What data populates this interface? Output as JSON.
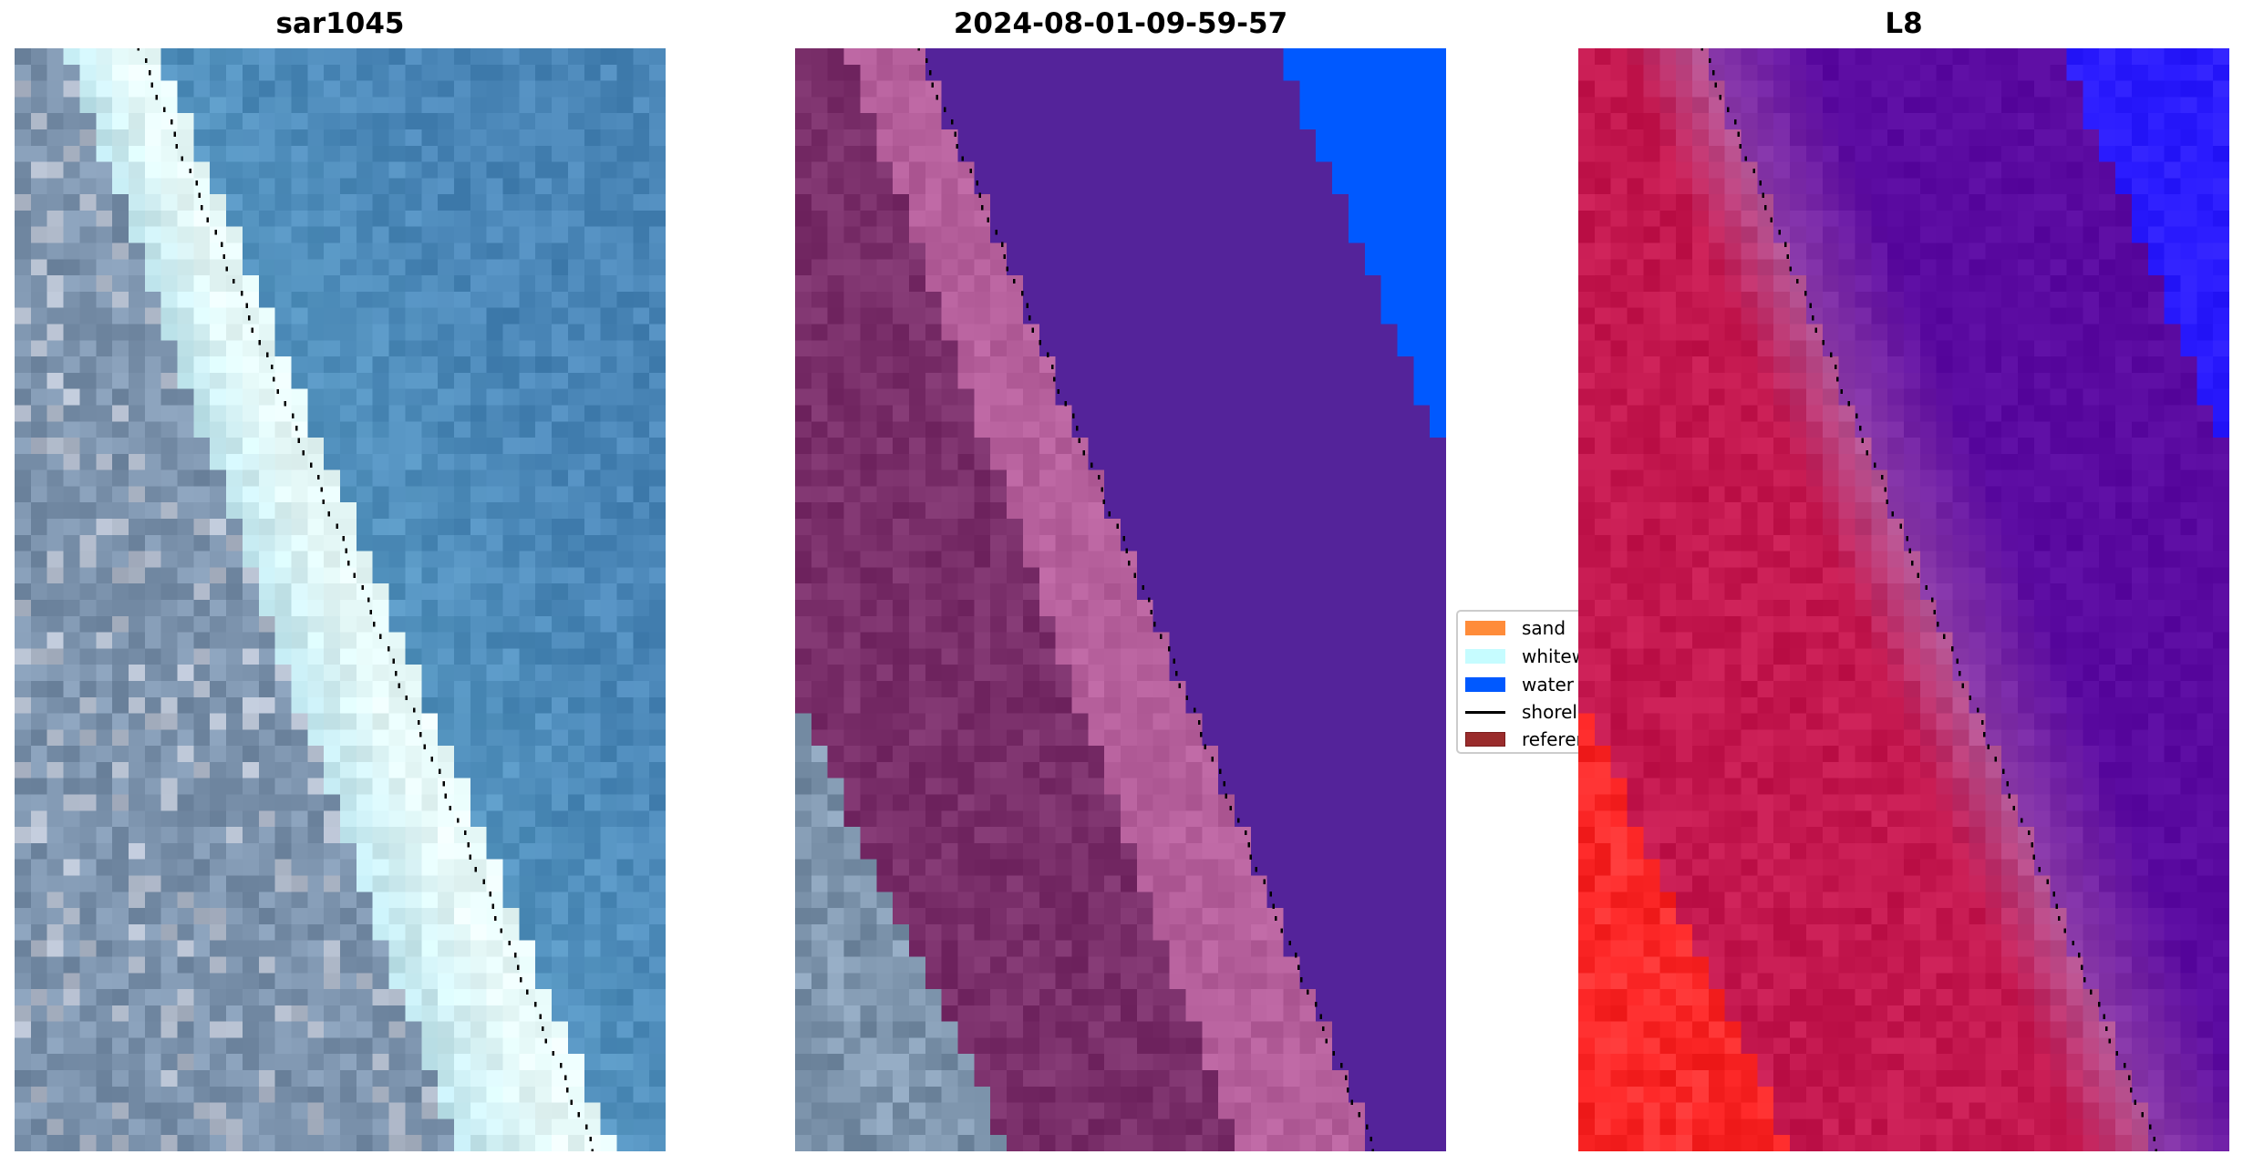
{
  "panels": [
    {
      "title": "sar1045",
      "style": "rgb"
    },
    {
      "title": "2024-08-01-09-59-57",
      "style": "classified"
    },
    {
      "title": "L8",
      "style": "index"
    }
  ],
  "legend": {
    "items": [
      {
        "label": "sand",
        "color": "#ff8c3a",
        "kind": "patch"
      },
      {
        "label": "whitewater",
        "color": "#c6fcff",
        "kind": "patch"
      },
      {
        "label": "water",
        "color": "#0059ff",
        "kind": "patch"
      },
      {
        "label": "shoreline",
        "color": "#000000",
        "kind": "line"
      },
      {
        "label": "reference shoreline",
        "color": "#9a2c2c",
        "kind": "patch"
      }
    ]
  },
  "colors": {
    "rgb_land": "#7c93ad",
    "rgb_white": "#e8fbfa",
    "rgb_water": "#4a86b7",
    "cls_land": "#7a2f6a",
    "cls_sand": "#b6609c",
    "cls_water": "#54239a",
    "cls_blue": "#0059ff",
    "cls_grey": "#7f96ae",
    "idx_land": "#c4184f",
    "idx_sand": "#cc4a7c",
    "idx_water": "#5a0aa0",
    "idx_blue": "#2b1cff",
    "idx_red": "#ff2a2a"
  }
}
